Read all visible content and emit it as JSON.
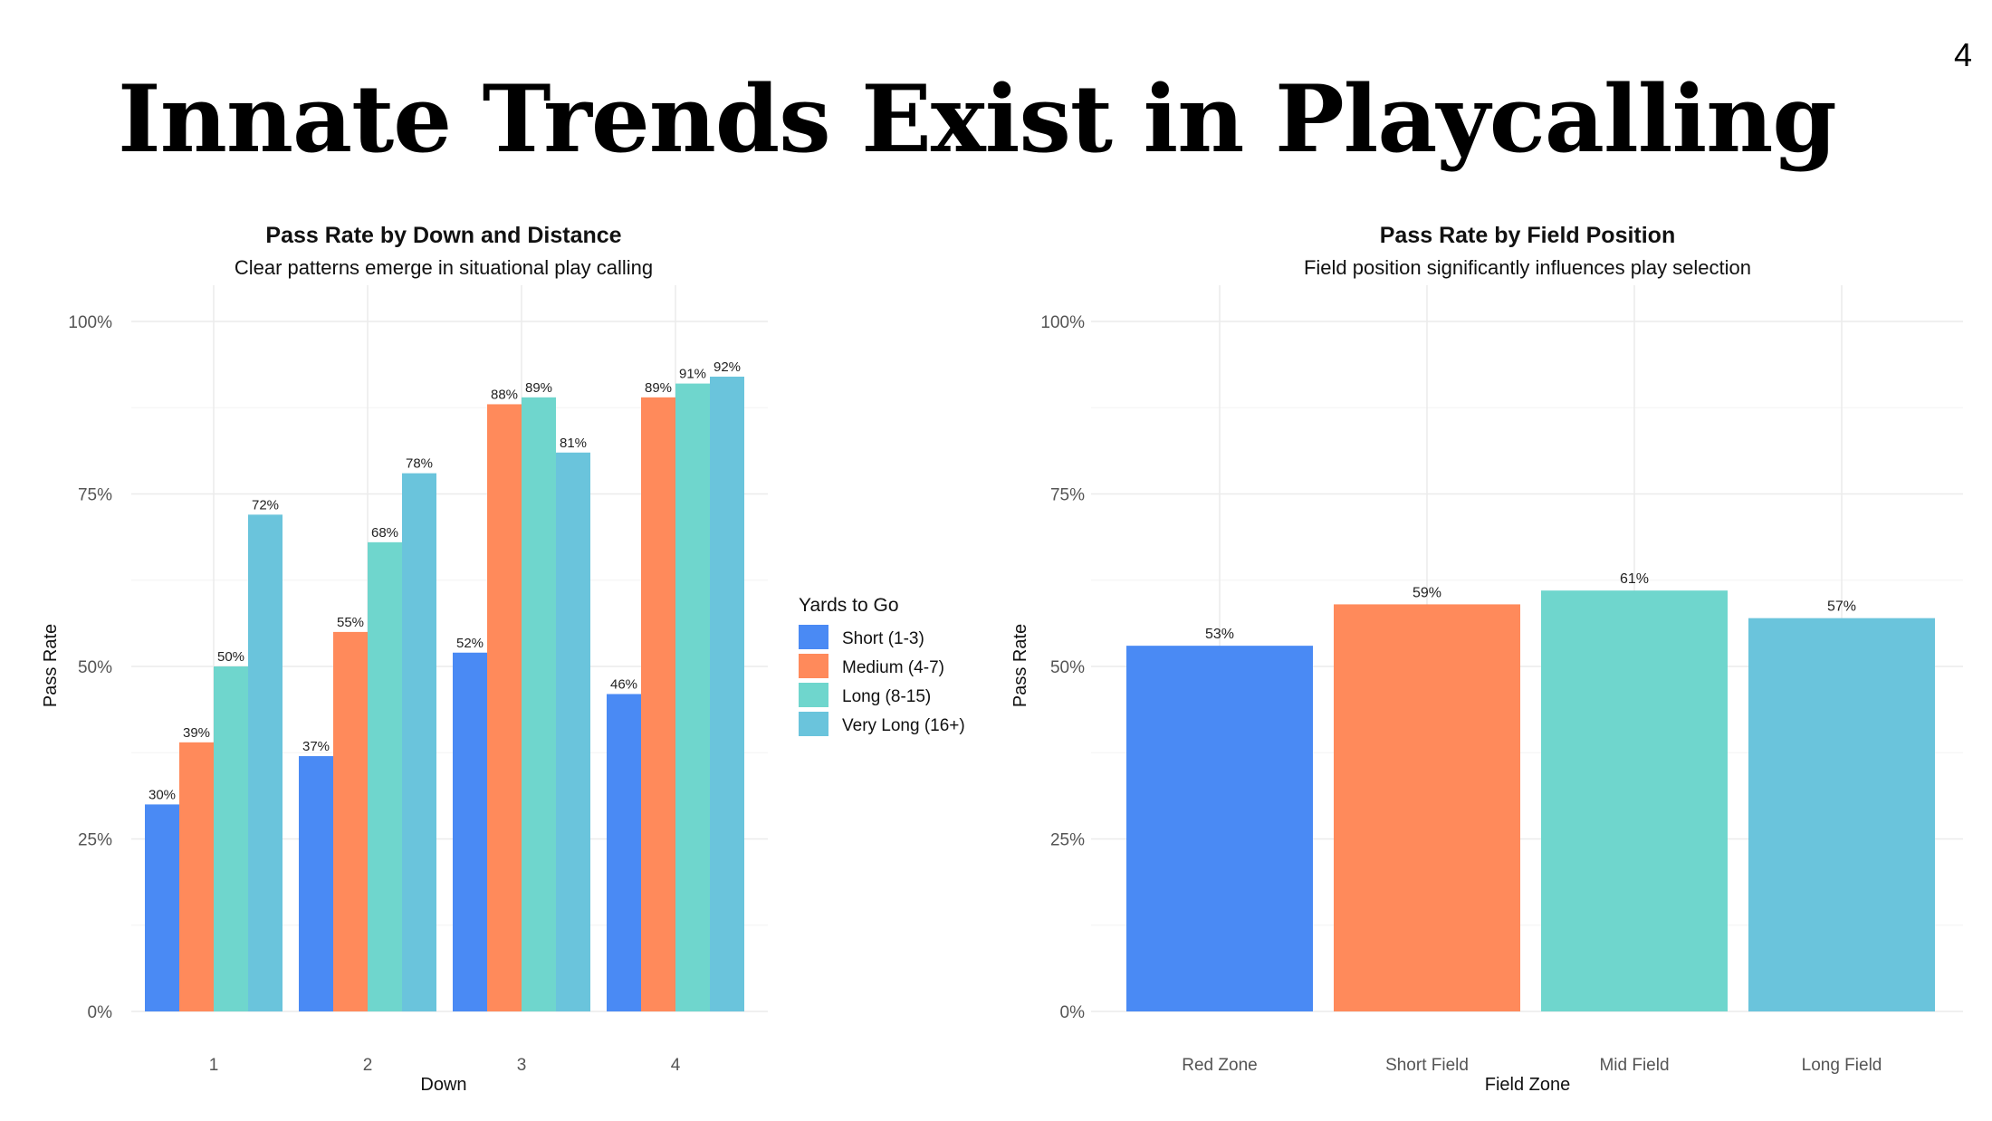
{
  "slide": {
    "number": "4",
    "title": "Innate Trends Exist in Playcalling"
  },
  "colors": {
    "blue": "#4A8AF4",
    "orange": "#FF8A5B",
    "teal": "#6FD6CD",
    "sky": "#6AC4DC",
    "grid": "#EBEBEB",
    "axis_text": "#555555"
  },
  "chart_data": [
    {
      "type": "bar",
      "title": "Pass Rate by Down and Distance",
      "subtitle": "Clear patterns emerge in situational play calling",
      "xlabel": "Down",
      "ylabel": "Pass Rate",
      "ylim": [
        0,
        1
      ],
      "yticks": [
        "0%",
        "25%",
        "50%",
        "75%",
        "100%"
      ],
      "categories": [
        "1",
        "2",
        "3",
        "4"
      ],
      "grid": true,
      "legend": {
        "title": "Yards to Go",
        "position": "right"
      },
      "series": [
        {
          "name": "Short (1-3)",
          "color": "#4A8AF4",
          "values": [
            0.3,
            0.37,
            0.52,
            0.46
          ],
          "labels": [
            "30%",
            "37%",
            "52%",
            "46%"
          ]
        },
        {
          "name": "Medium (4-7)",
          "color": "#FF8A5B",
          "values": [
            0.39,
            0.55,
            0.88,
            0.89
          ],
          "labels": [
            "39%",
            "55%",
            "88%",
            "89%"
          ]
        },
        {
          "name": "Long (8-15)",
          "color": "#6FD6CD",
          "values": [
            0.5,
            0.68,
            0.89,
            0.91
          ],
          "labels": [
            "50%",
            "68%",
            "89%",
            "91%"
          ]
        },
        {
          "name": "Very Long (16+)",
          "color": "#6AC4DC",
          "values": [
            0.72,
            0.78,
            0.81,
            0.92
          ],
          "labels": [
            "72%",
            "78%",
            "81%",
            "92%"
          ]
        }
      ]
    },
    {
      "type": "bar",
      "title": "Pass Rate by Field Position",
      "subtitle": "Field position significantly influences play selection",
      "xlabel": "Field Zone",
      "ylabel": "Pass Rate",
      "ylim": [
        0,
        1
      ],
      "yticks": [
        "0%",
        "25%",
        "50%",
        "75%",
        "100%"
      ],
      "categories": [
        "Red Zone",
        "Short Field",
        "Mid Field",
        "Long Field"
      ],
      "grid": true,
      "values": [
        0.53,
        0.59,
        0.61,
        0.57
      ],
      "labels": [
        "53%",
        "59%",
        "61%",
        "57%"
      ],
      "colors": [
        "#4A8AF4",
        "#FF8A5B",
        "#6FD6CD",
        "#6AC4DC"
      ]
    }
  ]
}
